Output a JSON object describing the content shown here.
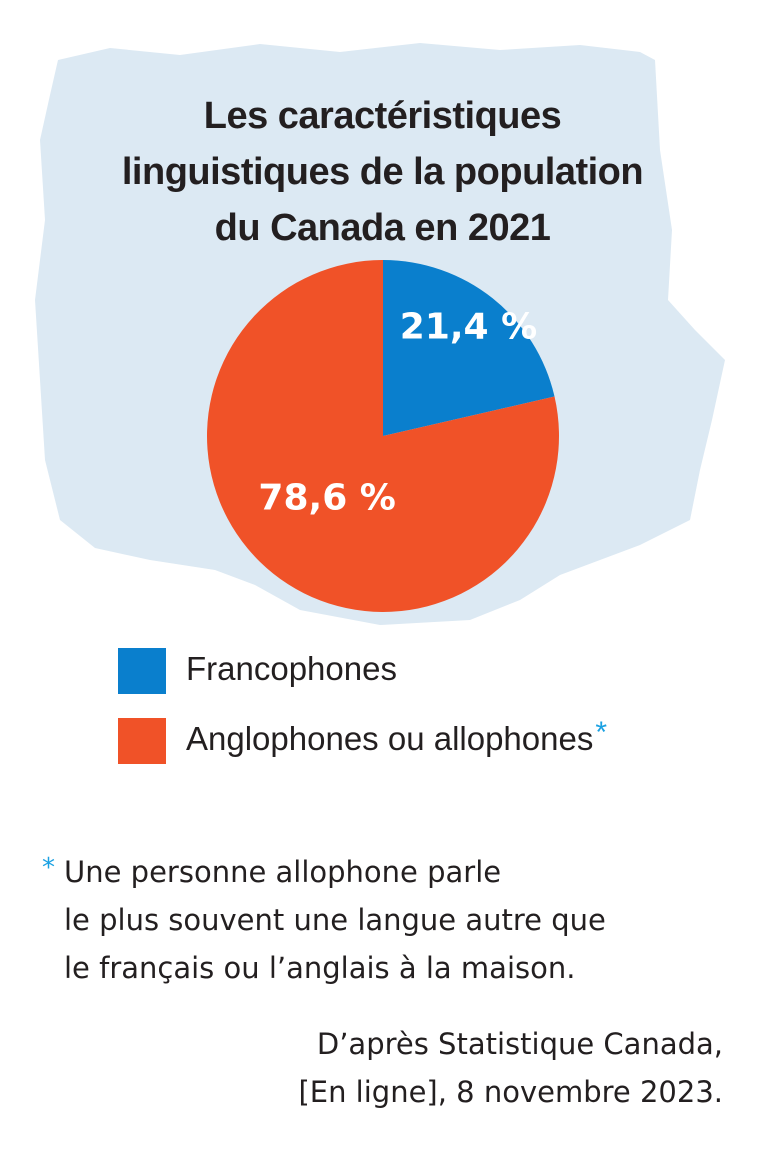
{
  "chart_data": {
    "type": "pie",
    "title_lines": [
      "Les caractéristiques",
      "linguistiques de la population",
      "du Canada en 2021"
    ],
    "slices": [
      {
        "label": "Francophones",
        "value": 21.4,
        "display": "21,4 %",
        "color": "#0a7fcd"
      },
      {
        "label": "Anglophones ou allophones",
        "value": 78.6,
        "display": "78,6 %",
        "color": "#f05228"
      }
    ],
    "legend_position": "bottom-left",
    "legend_asterisk": "*"
  },
  "colors": {
    "backdrop": "#dce9f3",
    "francophones": "#0a7fcd",
    "anglophones": "#f05228",
    "accent_asterisk": "#1ba1e2"
  },
  "footnote": {
    "marker": "*",
    "lines": [
      "Une personne allophone parle",
      "le plus souvent une langue autre que",
      "le français ou l’anglais à la maison."
    ]
  },
  "source": {
    "lines": [
      "D’après Statistique Canada,",
      "[En ligne], 8 novembre 2023."
    ]
  }
}
